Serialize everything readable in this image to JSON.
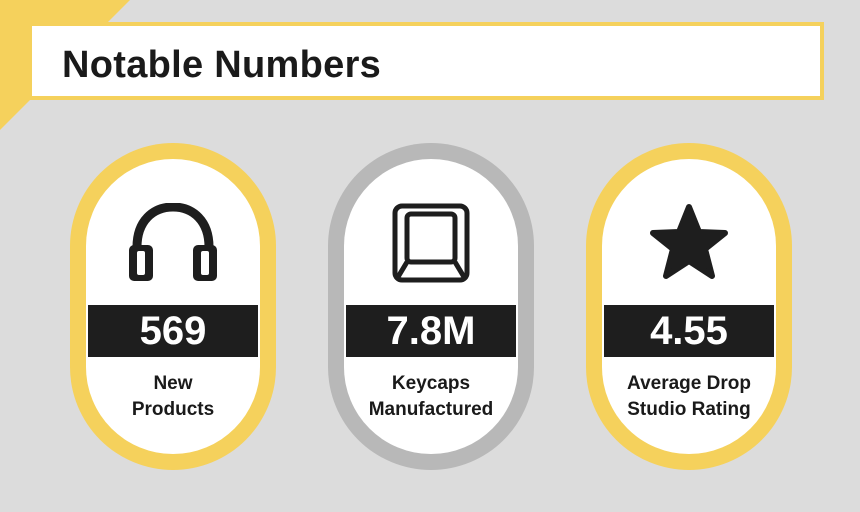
{
  "header": {
    "title": "Notable Numbers"
  },
  "colors": {
    "accent": "#f5d15c",
    "gray_ring": "#b8b8b8",
    "background": "#dcdcdc",
    "value_bar": "#1e1e1e"
  },
  "stats": [
    {
      "icon": "headphones-icon",
      "value": "569",
      "label_line1": "New",
      "label_line2": "Products",
      "ring": "yellow"
    },
    {
      "icon": "keycap-icon",
      "value": "7.8M",
      "label_line1": "Keycaps",
      "label_line2": "Manufactured",
      "ring": "gray"
    },
    {
      "icon": "star-icon",
      "value": "4.55",
      "label_line1": "Average Drop",
      "label_line2": "Studio Rating",
      "ring": "yellow"
    }
  ]
}
